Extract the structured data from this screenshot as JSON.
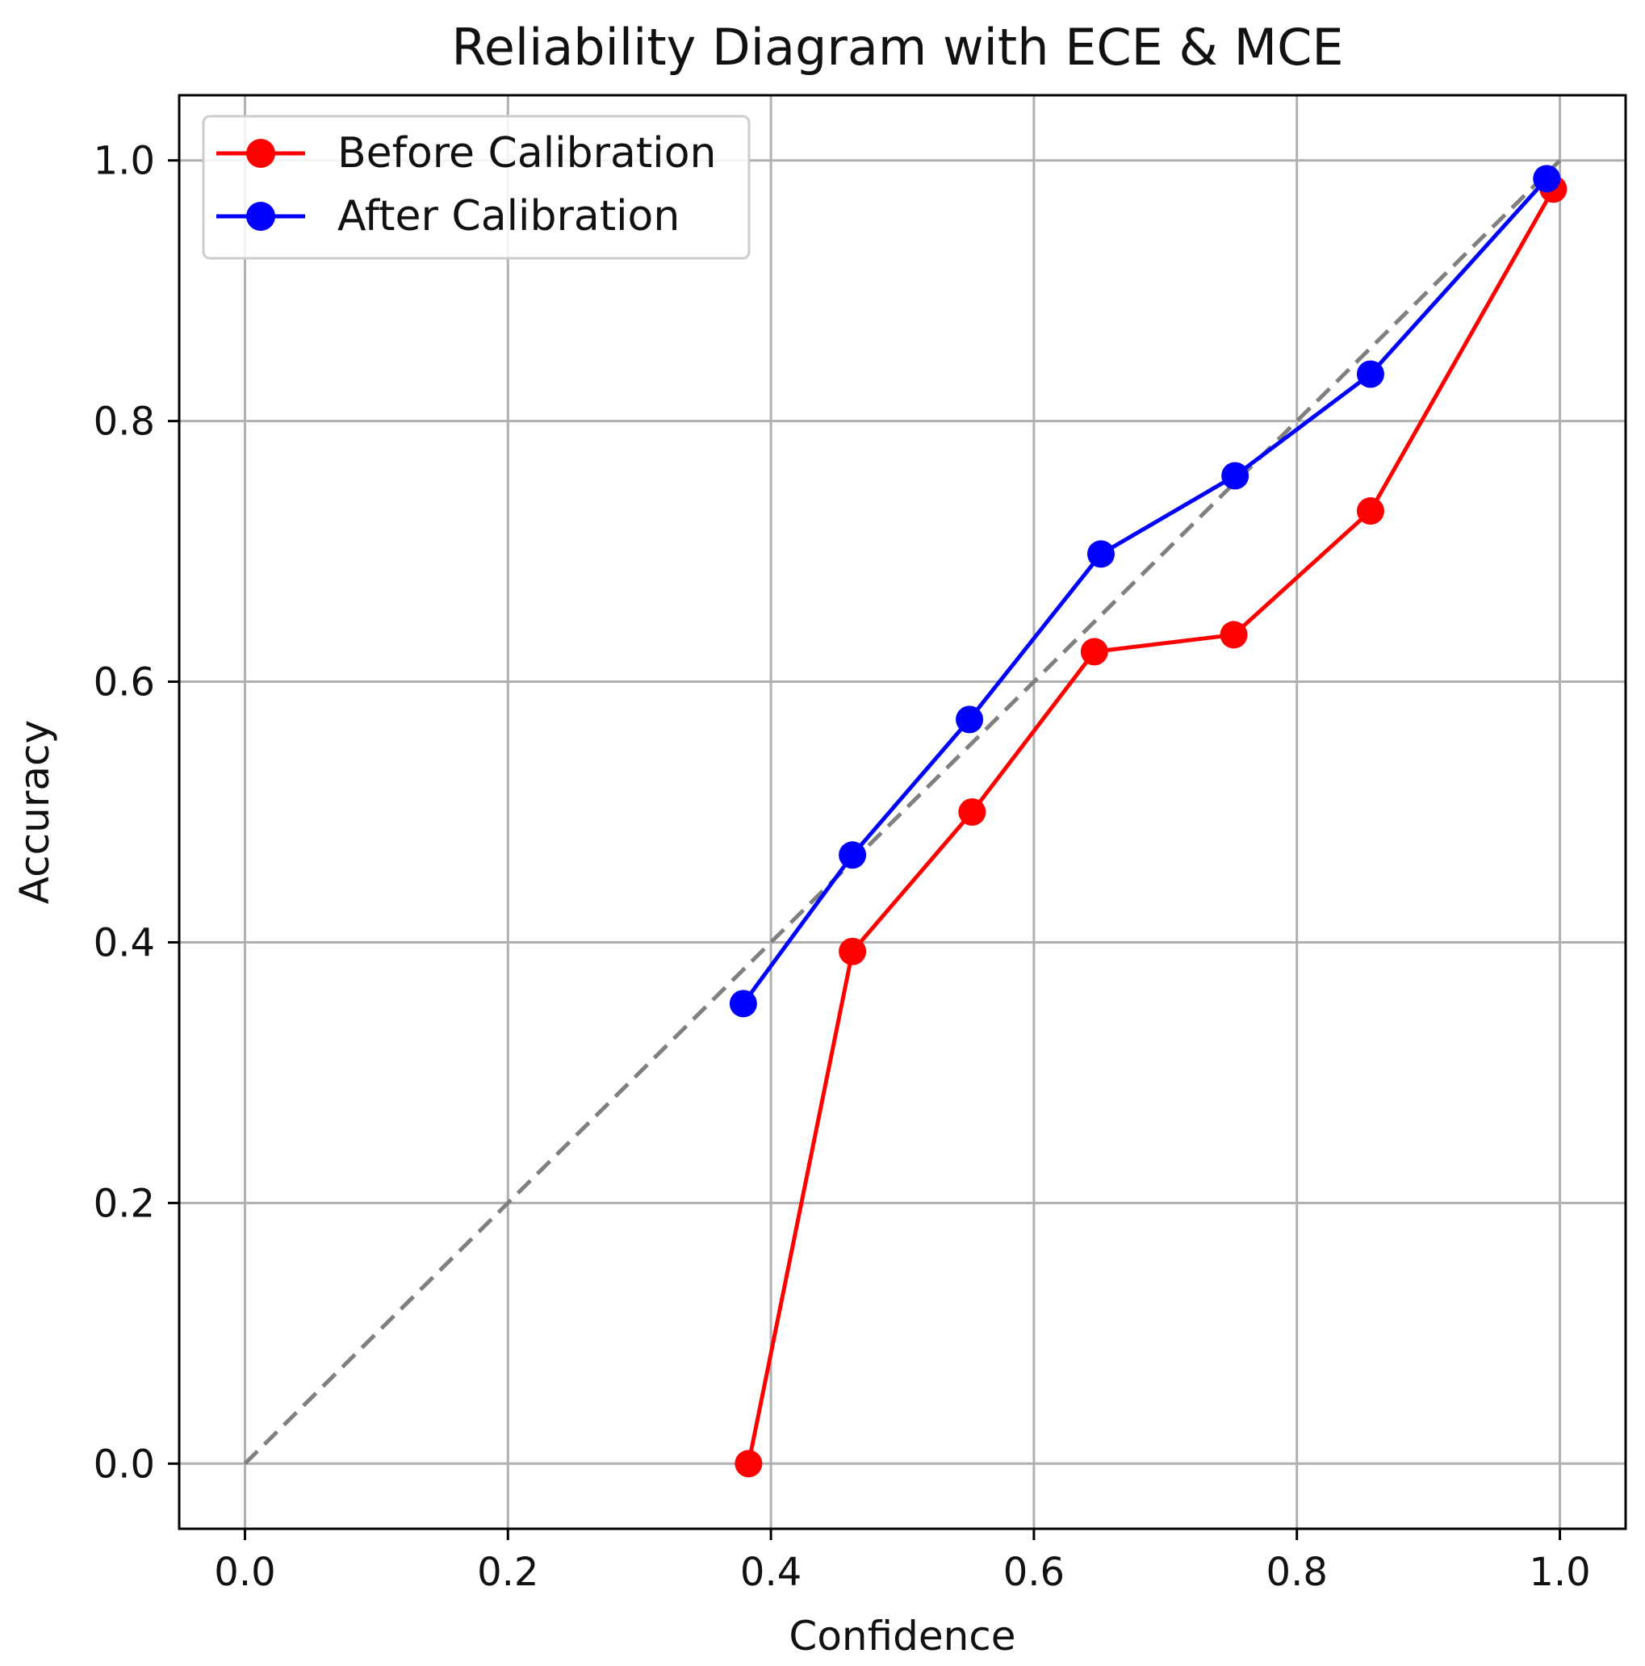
{
  "chart_data": {
    "type": "line",
    "title": "Reliability Diagram with ECE & MCE",
    "xlabel": "Confidence",
    "ylabel": "Accuracy",
    "xlim": [
      -0.05,
      1.05
    ],
    "ylim": [
      -0.05,
      1.05
    ],
    "grid": true,
    "legend_position": "top-left",
    "xticks": [
      {
        "value": 0.0,
        "label": "0.0"
      },
      {
        "value": 0.2,
        "label": "0.2"
      },
      {
        "value": 0.4,
        "label": "0.4"
      },
      {
        "value": 0.6,
        "label": "0.6"
      },
      {
        "value": 0.8,
        "label": "0.8"
      },
      {
        "value": 1.0,
        "label": "1.0"
      }
    ],
    "yticks": [
      {
        "value": 0.0,
        "label": "0.0"
      },
      {
        "value": 0.2,
        "label": "0.2"
      },
      {
        "value": 0.4,
        "label": "0.4"
      },
      {
        "value": 0.6,
        "label": "0.6"
      },
      {
        "value": 0.8,
        "label": "0.8"
      },
      {
        "value": 1.0,
        "label": "1.0"
      }
    ],
    "reference_line": {
      "x": [
        0.0,
        1.0
      ],
      "y": [
        0.0,
        1.0
      ],
      "color": "#808080",
      "style": "dashed"
    },
    "series": [
      {
        "name": "Before Calibration",
        "color": "#ff0000",
        "x": [
          0.383,
          0.462,
          0.553,
          0.646,
          0.752,
          0.856,
          0.995
        ],
        "y": [
          0.0,
          0.393,
          0.5,
          0.623,
          0.636,
          0.731,
          0.978
        ]
      },
      {
        "name": "After Calibration",
        "color": "#0000ff",
        "x": [
          0.379,
          0.462,
          0.551,
          0.651,
          0.753,
          0.856,
          0.99
        ],
        "y": [
          0.353,
          0.467,
          0.571,
          0.698,
          0.758,
          0.836,
          0.986
        ]
      }
    ]
  }
}
